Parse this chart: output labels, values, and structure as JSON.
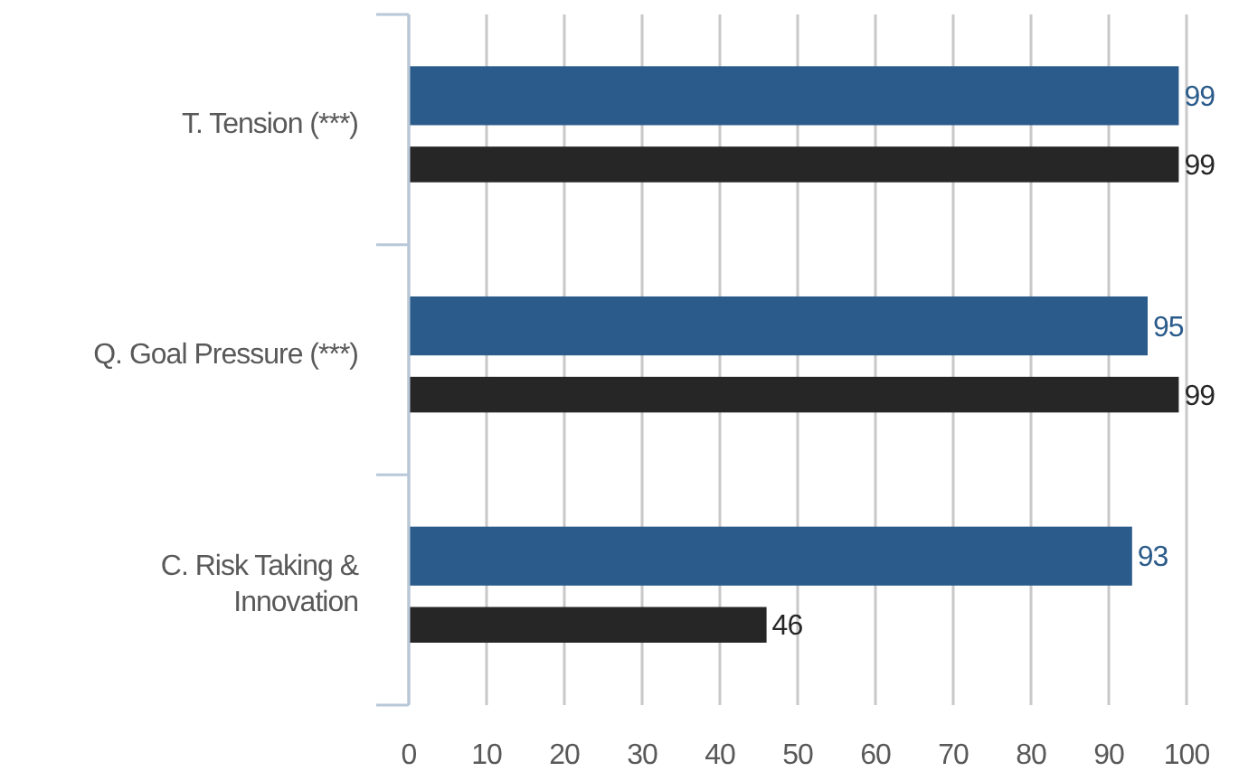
{
  "chart_data": {
    "type": "bar",
    "orientation": "horizontal",
    "categories": [
      "T. Tension (***)",
      "Q. Goal Pressure (***)",
      "C. Risk Taking & Innovation"
    ],
    "series": [
      {
        "color": "#2a5b8a",
        "values": [
          99,
          95,
          93
        ]
      },
      {
        "color": "#262626",
        "values": [
          99,
          99,
          46
        ]
      }
    ],
    "xlim": [
      0,
      100
    ],
    "xticks": [
      0,
      10,
      20,
      30,
      40,
      50,
      60,
      70,
      80,
      90,
      100
    ],
    "grid": "x",
    "data_labels": true
  }
}
